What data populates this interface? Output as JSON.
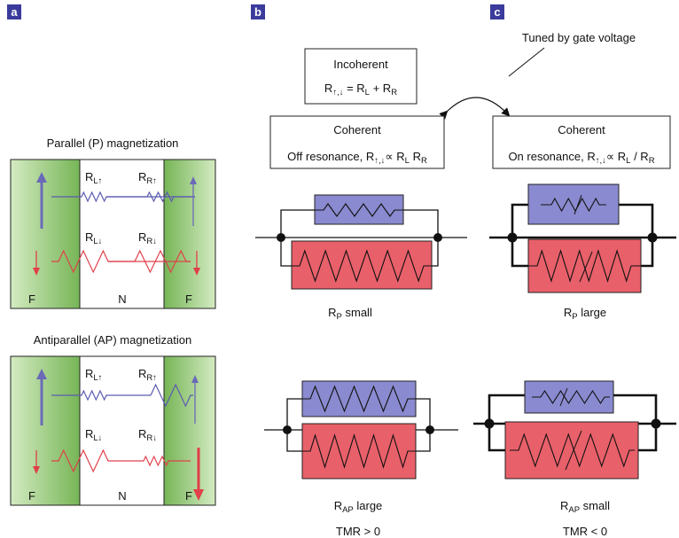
{
  "labels": {
    "a": "a",
    "b": "b",
    "c": "c"
  },
  "panel_a": {
    "parallel": {
      "title": "Parallel (P) magnetization",
      "r_l_up": [
        {
          "text": "R"
        },
        {
          "sub": "L↑"
        }
      ],
      "r_r_up": [
        {
          "text": "R"
        },
        {
          "sub": "R↑"
        }
      ],
      "r_l_down": [
        {
          "text": "R"
        },
        {
          "sub": "L↓"
        }
      ],
      "r_r_down": [
        {
          "text": "R"
        },
        {
          "sub": "R↓"
        }
      ],
      "regions": [
        "F",
        "N",
        "F"
      ]
    },
    "antiparallel": {
      "title": "Antiparallel (AP) magnetization",
      "r_l_up": [
        {
          "text": "R"
        },
        {
          "sub": "L↑"
        }
      ],
      "r_r_up": [
        {
          "text": "R"
        },
        {
          "sub": "R↑"
        }
      ],
      "r_l_down": [
        {
          "text": "R"
        },
        {
          "sub": "L↓"
        }
      ],
      "r_r_down": [
        {
          "text": "R"
        },
        {
          "sub": "R↓"
        }
      ],
      "regions": [
        "F",
        "N",
        "F"
      ]
    }
  },
  "incoherent": {
    "title": "Incoherent",
    "formula": [
      {
        "text": "R"
      },
      {
        "sub": "↑,↓"
      },
      {
        "text": " = R"
      },
      {
        "sub": "L"
      },
      {
        "text": " + R"
      },
      {
        "sub": "R"
      }
    ]
  },
  "annotation": "Tuned by gate voltage",
  "coherent_off": {
    "title": "Coherent",
    "formula": [
      {
        "text": "Off resonance, R"
      },
      {
        "sub": "↑,↓"
      },
      {
        "text": "∝ R"
      },
      {
        "sub": "L"
      },
      {
        "text": " R"
      },
      {
        "sub": "R"
      }
    ]
  },
  "coherent_on": {
    "title": "Coherent",
    "formula": [
      {
        "text": "On resonance, R"
      },
      {
        "sub": "↑,↓"
      },
      {
        "text": "∝ R"
      },
      {
        "sub": "L"
      },
      {
        "text": " / R"
      },
      {
        "sub": "R"
      }
    ]
  },
  "captions": {
    "p_small": [
      {
        "text": "R"
      },
      {
        "sub": "P"
      },
      {
        "text": " small"
      }
    ],
    "p_large": [
      {
        "text": "R"
      },
      {
        "sub": "P"
      },
      {
        "text": " large"
      }
    ],
    "ap_large": [
      {
        "text": "R"
      },
      {
        "sub": "AP"
      },
      {
        "text": " large"
      }
    ],
    "ap_small": [
      {
        "text": "R"
      },
      {
        "sub": "AP"
      },
      {
        "text": " small"
      }
    ]
  },
  "tmr": {
    "positive": "TMR > 0",
    "negative": "TMR < 0"
  }
}
